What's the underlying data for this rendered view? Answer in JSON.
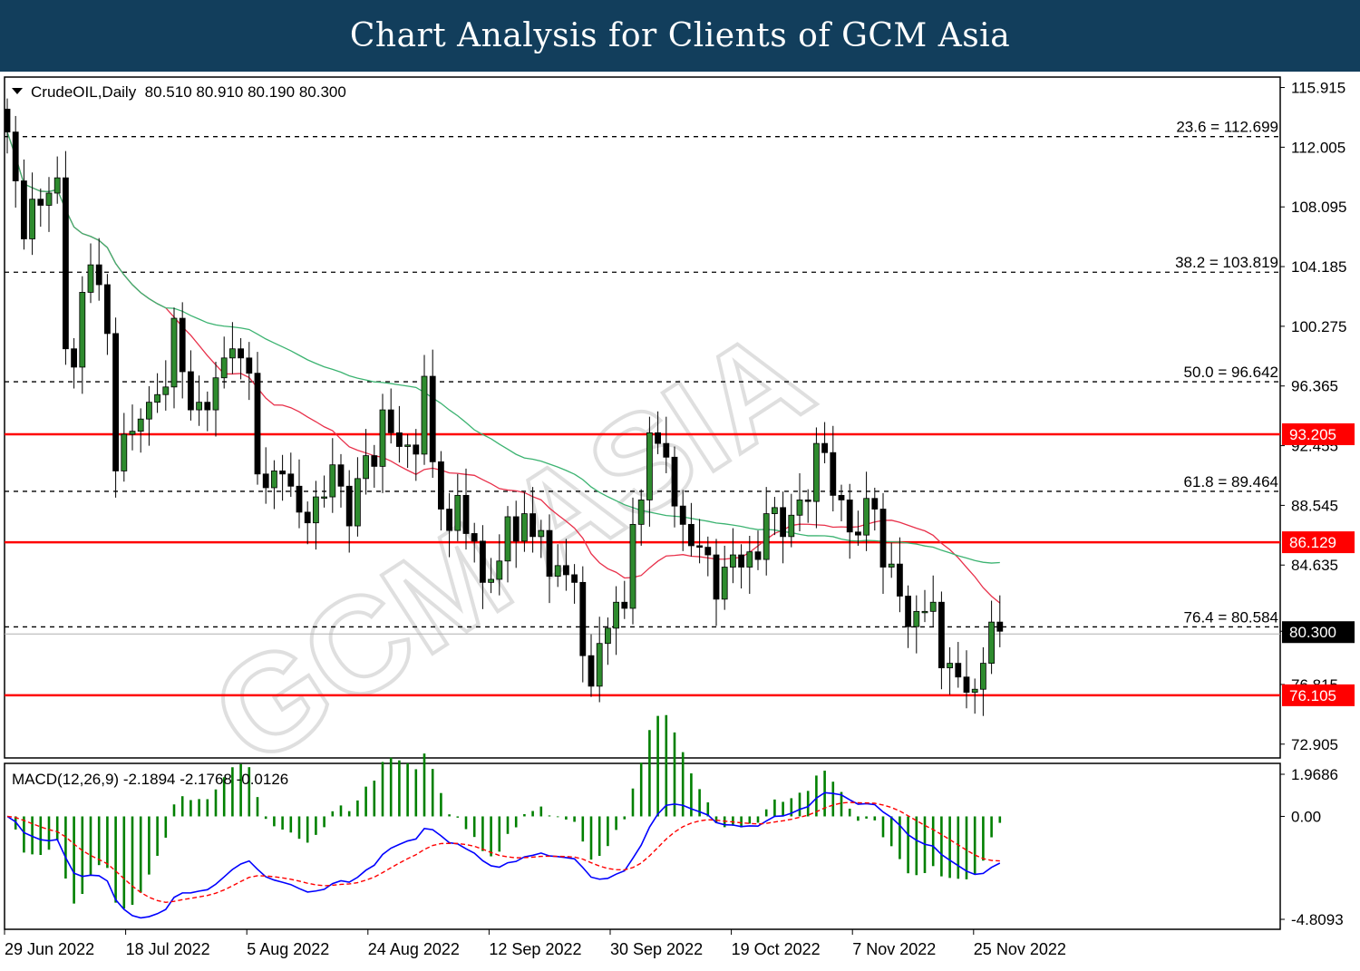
{
  "header": {
    "title": "Chart Analysis for Clients of GCM Asia"
  },
  "chart_data": {
    "type": "candlestick",
    "symbol_info": "CrudeOIL,Daily  80.510 80.910 80.190 80.300",
    "price_axis_ticks": [
      "115.915",
      "112.005",
      "108.095",
      "104.185",
      "100.275",
      "96.365",
      "92.455",
      "88.545",
      "84.635",
      "80.300",
      "76.815",
      "72.905"
    ],
    "price_ylim": [
      72.0,
      116.6
    ],
    "x_dates": [
      "29 Jun 2022",
      "18 Jul 2022",
      "5 Aug 2022",
      "24 Aug 2022",
      "12 Sep 2022",
      "30 Sep 2022",
      "19 Oct 2022",
      "7 Nov 2022",
      "25 Nov 2022"
    ],
    "last_price": {
      "value": 80.3,
      "label": "80.300",
      "color": "#000000"
    },
    "fibonacci_levels": [
      {
        "label": "23.6 = 112.699",
        "value": 112.699
      },
      {
        "label": "38.2 = 103.819",
        "value": 103.819
      },
      {
        "label": "50.0 = 96.642",
        "value": 96.642
      },
      {
        "label": "61.8 = 89.464",
        "value": 89.464
      },
      {
        "label": "76.4 = 80.584",
        "value": 80.584
      }
    ],
    "horizontal_lines": [
      {
        "value": 93.205,
        "label": "93.205",
        "color": "#ff0000"
      },
      {
        "value": 86.129,
        "label": "86.129",
        "color": "#ff0000"
      },
      {
        "value": 76.105,
        "label": "76.105",
        "color": "#ff0000"
      }
    ],
    "close_series": {
      "name": "Close",
      "values": [
        113.0,
        109.8,
        106.0,
        108.6,
        108.2,
        109.0,
        110.0,
        98.8,
        97.6,
        102.5,
        104.3,
        103.0,
        99.8,
        90.8,
        93.2,
        93.4,
        94.2,
        95.3,
        95.8,
        96.3,
        100.8,
        97.3,
        94.8,
        95.3,
        94.8,
        96.9,
        98.2,
        98.8,
        98.2,
        97.2,
        90.6,
        89.7,
        90.8,
        90.6,
        89.8,
        88.1,
        87.4,
        89.1,
        89.1,
        91.2,
        89.8,
        87.2,
        90.3,
        91.8,
        91.1,
        94.8,
        93.3,
        92.4,
        92.5,
        91.9,
        97.0,
        91.4,
        88.3,
        86.9,
        89.2,
        86.7,
        86.2,
        83.5,
        83.7,
        84.9,
        87.8,
        86.2,
        88.0,
        86.5,
        86.9,
        83.9,
        84.6,
        84.0,
        83.5,
        78.7,
        76.7,
        79.5,
        80.5,
        82.2,
        81.8,
        87.3,
        88.9,
        93.3,
        92.6,
        91.7,
        88.5,
        87.3,
        85.9,
        85.8,
        85.3,
        82.4,
        84.5,
        85.3,
        84.5,
        85.5,
        85.0,
        88.0,
        88.4,
        86.5,
        87.9,
        88.9,
        88.8,
        92.6,
        92.0,
        89.2,
        88.9,
        86.8,
        86.6,
        89.0,
        88.3,
        84.5,
        84.7,
        82.6,
        80.6,
        81.6,
        81.6,
        82.2,
        77.9,
        78.2,
        77.3,
        76.3,
        76.5,
        78.2,
        80.9,
        80.3
      ]
    },
    "moving_averages": [
      {
        "name": "MA fast",
        "color": "#e8304a"
      },
      {
        "name": "MA slow",
        "color": "#3cb371"
      }
    ],
    "macd": {
      "title": "MACD(12,26,9) -2.1894 -2.1768 -0.0126",
      "axis_ticks": [
        "1.9686",
        "0.00",
        "-4.8093"
      ],
      "ylim": [
        -4.8093,
        1.9686
      ],
      "macd_color": "#0000ff",
      "signal_color": "#ff0000",
      "histogram_color": "#008000"
    },
    "watermark": "GCM ASIA",
    "grid": false,
    "legend": "none"
  }
}
